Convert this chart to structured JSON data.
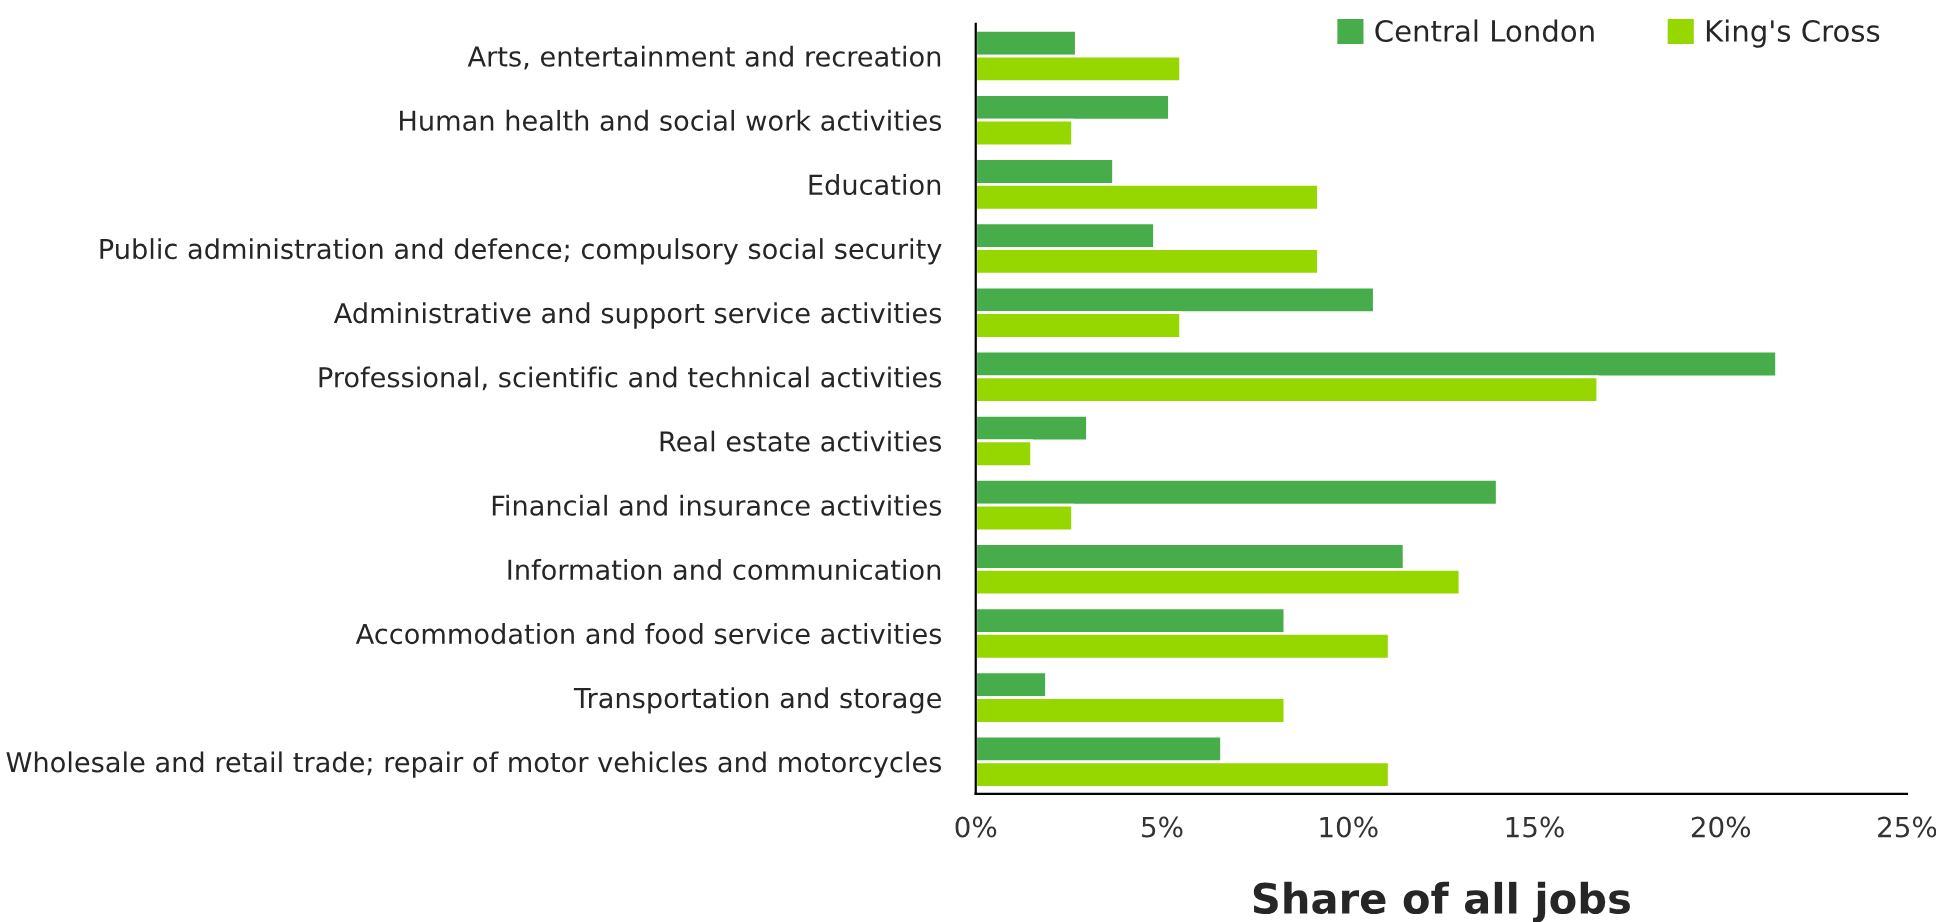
{
  "chart_data": {
    "type": "bar",
    "orientation": "horizontal",
    "xlabel": "Share of all jobs",
    "categories": [
      "Arts, entertainment and recreation",
      "Human health and social work activities",
      "Education",
      "Public administration and defence; compulsory social security",
      "Administrative and support service activities",
      "Professional, scientific and technical activities",
      "Real estate activities",
      "Financial and insurance activities",
      "Information and communication",
      "Accommodation and food service activities",
      "Transportation and storage",
      "Wholesale and retail trade; repair of motor vehicles and motorcycles"
    ],
    "series": [
      {
        "name": "Central London",
        "color": "#46ad4a",
        "values": [
          2.7,
          5.2,
          3.7,
          4.8,
          10.7,
          21.5,
          3.0,
          14.0,
          11.5,
          8.3,
          1.9,
          6.6
        ]
      },
      {
        "name": "King's Cross",
        "color": "#97d700",
        "values": [
          5.5,
          2.6,
          9.2,
          9.2,
          5.5,
          16.7,
          1.5,
          2.6,
          13.0,
          11.1,
          8.3,
          11.1
        ]
      }
    ],
    "xlim": [
      0,
      25
    ],
    "xticks": [
      {
        "value": 0,
        "label": "0%"
      },
      {
        "value": 5,
        "label": "5%"
      },
      {
        "value": 10,
        "label": "10%"
      },
      {
        "value": 15,
        "label": "15%"
      },
      {
        "value": 20,
        "label": "20%"
      },
      {
        "value": 25,
        "label": "25%"
      }
    ],
    "legend": "top right",
    "grid": false
  }
}
